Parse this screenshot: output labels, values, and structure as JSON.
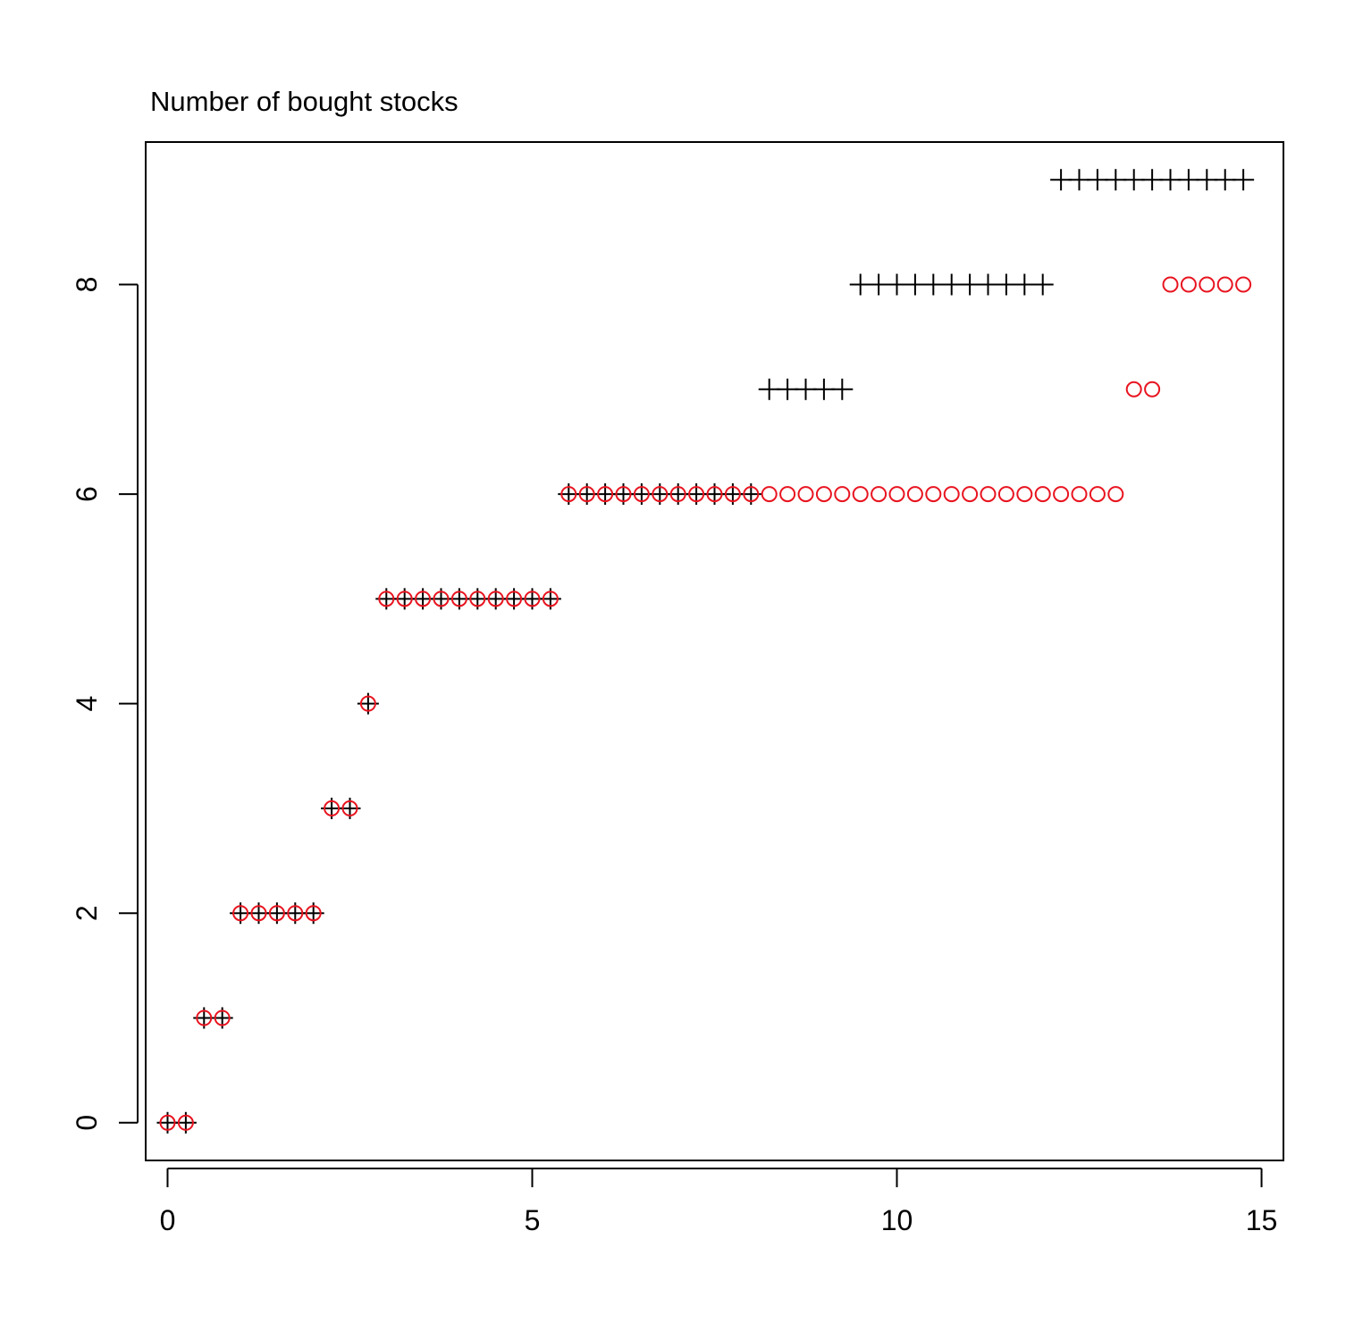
{
  "chart_data": {
    "type": "scatter",
    "title": "Number of bought stocks",
    "xlabel": "",
    "ylabel": "",
    "xlim": [
      -0.3,
      15.3
    ],
    "ylim": [
      -0.36,
      9.36
    ],
    "x_ticks": [
      "0",
      "5",
      "10",
      "15"
    ],
    "y_ticks": [
      "0",
      "2",
      "4",
      "6",
      "8"
    ],
    "grid": false,
    "legend": "none",
    "series": [
      {
        "marker": "plus",
        "color": "#000000",
        "x": [
          0,
          0.25,
          0.5,
          0.75,
          1,
          1.25,
          1.5,
          1.75,
          2,
          2.25,
          2.5,
          2.75,
          3,
          3.25,
          3.5,
          3.75,
          4,
          4.25,
          4.5,
          4.75,
          5,
          5.25,
          5.5,
          5.75,
          6,
          6.25,
          6.5,
          6.75,
          7,
          7.25,
          7.5,
          7.75,
          8,
          8.25,
          8.5,
          8.75,
          9,
          9.25,
          9.5,
          9.75,
          10,
          10.25,
          10.5,
          10.75,
          11,
          11.25,
          11.5,
          11.75,
          12,
          12.25,
          12.5,
          12.75,
          13,
          13.25,
          13.5,
          13.75,
          14,
          14.25,
          14.5,
          14.75
        ],
        "y": [
          0,
          0,
          1,
          1,
          2,
          2,
          2,
          2,
          2,
          3,
          3,
          4,
          5,
          5,
          5,
          5,
          5,
          5,
          5,
          5,
          5,
          5,
          6,
          6,
          6,
          6,
          6,
          6,
          6,
          6,
          6,
          6,
          6,
          7,
          7,
          7,
          7,
          7,
          8,
          8,
          8,
          8,
          8,
          8,
          8,
          8,
          8,
          8,
          8,
          9,
          9,
          9,
          9,
          9,
          9,
          9,
          9,
          9,
          9,
          9
        ]
      },
      {
        "marker": "circle",
        "color": "#e8141f",
        "x": [
          0,
          0.25,
          0.5,
          0.75,
          1,
          1.25,
          1.5,
          1.75,
          2,
          2.25,
          2.5,
          2.75,
          3,
          3.25,
          3.5,
          3.75,
          4,
          4.25,
          4.5,
          4.75,
          5,
          5.25,
          5.5,
          5.75,
          6,
          6.25,
          6.5,
          6.75,
          7,
          7.25,
          7.5,
          7.75,
          8,
          8.25,
          8.5,
          8.75,
          9,
          9.25,
          9.5,
          9.75,
          10,
          10.25,
          10.5,
          10.75,
          11,
          11.25,
          11.5,
          11.75,
          12,
          12.25,
          12.5,
          12.75,
          13,
          13.25,
          13.5,
          13.75,
          14,
          14.25,
          14.5,
          14.75
        ],
        "y": [
          0,
          0,
          1,
          1,
          2,
          2,
          2,
          2,
          2,
          3,
          3,
          4,
          5,
          5,
          5,
          5,
          5,
          5,
          5,
          5,
          5,
          5,
          6,
          6,
          6,
          6,
          6,
          6,
          6,
          6,
          6,
          6,
          6,
          6,
          6,
          6,
          6,
          6,
          6,
          6,
          6,
          6,
          6,
          6,
          6,
          6,
          6,
          6,
          6,
          6,
          6,
          6,
          6,
          7,
          7,
          8,
          8,
          8,
          8,
          8
        ]
      }
    ]
  }
}
